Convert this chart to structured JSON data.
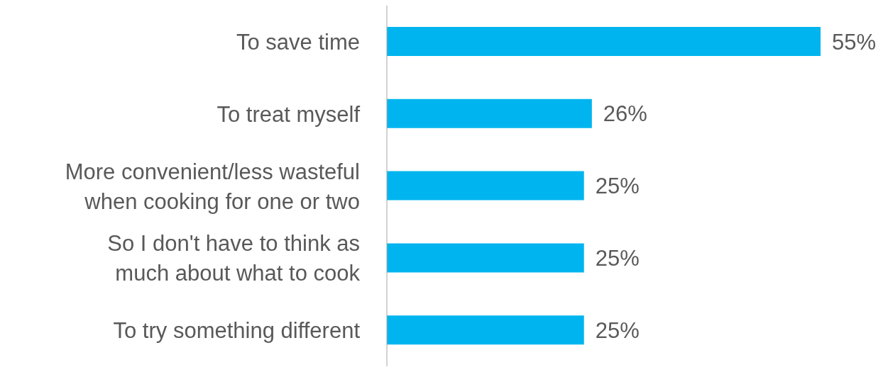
{
  "chart_data": {
    "type": "bar",
    "orientation": "horizontal",
    "categories": [
      "To save time",
      "To treat myself",
      "More convenient/less wasteful when cooking for one or two",
      "So I don't have to think as much about what to cook",
      "To try something different"
    ],
    "values": [
      55,
      26,
      25,
      25,
      25
    ],
    "value_labels": [
      "55%",
      "26%",
      "25%",
      "25%",
      "25%"
    ],
    "color": "#00b5ef"
  }
}
